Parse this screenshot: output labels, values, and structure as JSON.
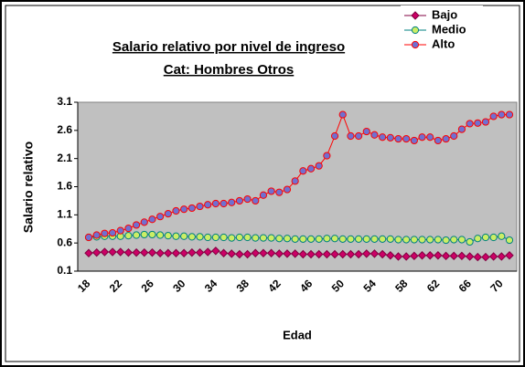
{
  "chart_data": {
    "type": "line",
    "title": "Salario relativo por nivel de ingreso",
    "subtitle": "Cat: Hombres Otros",
    "x_label": "Edad",
    "y_label": "Salario relativo",
    "categories": [
      18,
      null,
      null,
      null,
      22,
      null,
      null,
      null,
      26,
      null,
      null,
      null,
      30,
      null,
      null,
      null,
      34,
      null,
      null,
      null,
      38,
      null,
      null,
      null,
      42,
      null,
      null,
      null,
      46,
      null,
      null,
      null,
      50,
      null,
      null,
      null,
      54,
      null,
      null,
      null,
      58,
      null,
      null,
      null,
      62,
      null,
      null,
      null,
      66,
      null,
      null,
      null,
      70,
      null
    ],
    "ylim": [
      0.1,
      3.1
    ],
    "yticks": [
      0.1,
      0.6,
      1.1,
      1.6,
      2.1,
      2.6,
      3.1
    ],
    "legend": "top-right",
    "plot_background": "#c0c0c0",
    "series": [
      {
        "name": "Bajo",
        "color": "#800040",
        "marker": "diamond",
        "marker_fill": "#cc0066",
        "values": [
          0.42,
          0.43,
          0.44,
          0.44,
          0.44,
          0.43,
          0.43,
          0.43,
          0.43,
          0.42,
          0.42,
          0.42,
          0.42,
          0.43,
          0.43,
          0.44,
          0.46,
          0.42,
          0.41,
          0.4,
          0.4,
          0.42,
          0.42,
          0.42,
          0.41,
          0.41,
          0.41,
          0.4,
          0.4,
          0.4,
          0.4,
          0.4,
          0.4,
          0.4,
          0.4,
          0.41,
          0.41,
          0.4,
          0.38,
          0.36,
          0.36,
          0.37,
          0.38,
          0.38,
          0.38,
          0.37,
          0.37,
          0.37,
          0.36,
          0.35,
          0.35,
          0.36,
          0.36,
          0.38
        ]
      },
      {
        "name": "Medio",
        "color": "#008080",
        "marker": "circle",
        "marker_fill": "#ccee66",
        "values": [
          0.7,
          0.71,
          0.72,
          0.72,
          0.72,
          0.73,
          0.74,
          0.75,
          0.75,
          0.74,
          0.73,
          0.72,
          0.72,
          0.71,
          0.71,
          0.7,
          0.7,
          0.7,
          0.69,
          0.7,
          0.7,
          0.69,
          0.69,
          0.69,
          0.68,
          0.68,
          0.67,
          0.67,
          0.67,
          0.67,
          0.68,
          0.68,
          0.67,
          0.67,
          0.67,
          0.67,
          0.67,
          0.67,
          0.67,
          0.66,
          0.66,
          0.66,
          0.66,
          0.66,
          0.66,
          0.65,
          0.66,
          0.66,
          0.62,
          0.68,
          0.7,
          0.7,
          0.72,
          0.65
        ]
      },
      {
        "name": "Alto",
        "color": "#ff0000",
        "marker": "circle",
        "marker_fill": "#7070d0",
        "values": [
          0.7,
          0.74,
          0.77,
          0.78,
          0.82,
          0.86,
          0.92,
          0.97,
          1.02,
          1.07,
          1.12,
          1.17,
          1.2,
          1.22,
          1.25,
          1.28,
          1.3,
          1.3,
          1.32,
          1.35,
          1.38,
          1.35,
          1.45,
          1.52,
          1.5,
          1.55,
          1.7,
          1.88,
          1.92,
          1.97,
          2.15,
          2.5,
          2.88,
          2.5,
          2.5,
          2.58,
          2.52,
          2.48,
          2.47,
          2.45,
          2.45,
          2.42,
          2.48,
          2.48,
          2.42,
          2.45,
          2.5,
          2.62,
          2.72,
          2.73,
          2.75,
          2.85,
          2.88,
          2.88
        ]
      }
    ]
  }
}
